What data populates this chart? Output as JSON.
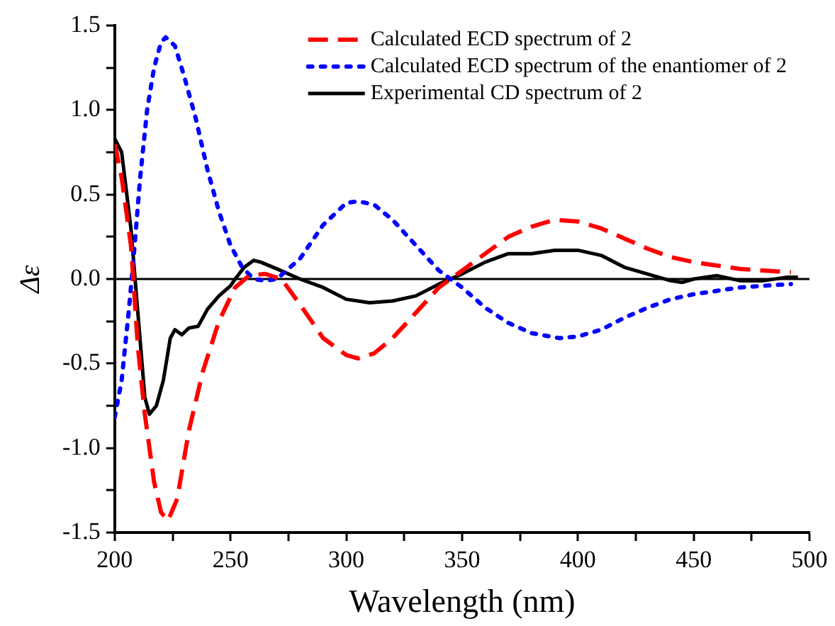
{
  "chart_data": {
    "type": "line",
    "xlabel": "Wavelength (nm)",
    "ylabel": "Δε",
    "legend": "top right",
    "grid": false,
    "marker": "none",
    "xlim": [
      200,
      500
    ],
    "ylim": [
      -1.5,
      1.5
    ],
    "xticks": [
      200,
      {
        "value": 225,
        "label": null
      },
      250,
      {
        "value": 275,
        "label": null
      },
      300,
      {
        "value": 325,
        "label": null
      },
      350,
      {
        "value": 375,
        "label": null
      },
      400,
      {
        "value": 425,
        "label": null
      },
      450,
      {
        "value": 475,
        "label": null
      },
      500
    ],
    "yticks": [
      {
        "value": -1.5,
        "label": "-1.5"
      },
      {
        "value": -1.25,
        "label": null
      },
      {
        "value": -1,
        "label": "-1.0"
      },
      {
        "value": -0.75,
        "label": null
      },
      {
        "value": -0.5,
        "label": "-0.5"
      },
      {
        "value": -0.25,
        "label": null
      },
      {
        "value": 0,
        "label": "0.0"
      },
      {
        "value": 0.25,
        "label": null
      },
      {
        "value": 0.5,
        "label": "0.5"
      },
      {
        "value": 0.75,
        "label": null
      },
      {
        "value": 1,
        "label": "1.0"
      },
      {
        "value": 1.25,
        "label": null
      },
      {
        "value": 1.5,
        "label": "1.5"
      }
    ],
    "ref_lines": [
      {
        "axis": "y",
        "value": 0,
        "color": "#000000"
      }
    ],
    "series": [
      {
        "name": "Calculated ECD spectrum of 2",
        "color": "#ff0000",
        "line_style": "dashed",
        "x": [
          200,
          203,
          207,
          210,
          213,
          217,
          220,
          223,
          227,
          232,
          238,
          245,
          252,
          258,
          265,
          272,
          280,
          290,
          300,
          305,
          312,
          320,
          330,
          340,
          345,
          350,
          360,
          370,
          380,
          390,
          400,
          410,
          420,
          430,
          440,
          450,
          460,
          470,
          480,
          492
        ],
        "values": [
          0.8,
          0.6,
          0.2,
          -0.4,
          -0.8,
          -1.2,
          -1.38,
          -1.43,
          -1.3,
          -0.9,
          -0.55,
          -0.25,
          -0.05,
          0.02,
          0.03,
          0.0,
          -0.15,
          -0.35,
          -0.45,
          -0.47,
          -0.44,
          -0.35,
          -0.2,
          -0.05,
          0.0,
          0.05,
          0.15,
          0.25,
          0.31,
          0.35,
          0.34,
          0.3,
          0.24,
          0.18,
          0.13,
          0.1,
          0.08,
          0.06,
          0.05,
          0.04
        ]
      },
      {
        "name": "Calculated ECD spectrum of the enantiomer of 2",
        "color": "#0000ff",
        "line_style": "dotted",
        "x": [
          200,
          203,
          206,
          208,
          211,
          214,
          217,
          220,
          222,
          226,
          230,
          235,
          240,
          245,
          250,
          255,
          260,
          265,
          270,
          280,
          290,
          300,
          305,
          312,
          320,
          330,
          340,
          345,
          350,
          360,
          370,
          380,
          392,
          400,
          410,
          420,
          430,
          440,
          450,
          460,
          470,
          480,
          492
        ],
        "values": [
          -0.82,
          -0.6,
          -0.2,
          0.1,
          0.6,
          1.0,
          1.25,
          1.4,
          1.43,
          1.38,
          1.2,
          0.95,
          0.65,
          0.4,
          0.2,
          0.07,
          0.0,
          -0.01,
          0.0,
          0.12,
          0.32,
          0.45,
          0.46,
          0.44,
          0.35,
          0.2,
          0.05,
          0.0,
          -0.05,
          -0.17,
          -0.26,
          -0.32,
          -0.35,
          -0.34,
          -0.3,
          -0.23,
          -0.17,
          -0.12,
          -0.09,
          -0.07,
          -0.05,
          -0.04,
          -0.03
        ]
      },
      {
        "name": "Experimental CD spectrum of 2",
        "color": "#000000",
        "line_style": "solid",
        "x": [
          200,
          203,
          207,
          210,
          213,
          215,
          218,
          221,
          224,
          226,
          229,
          232,
          236,
          240,
          245,
          250,
          252,
          256,
          260,
          263,
          270,
          280,
          290,
          300,
          310,
          320,
          330,
          340,
          345,
          350,
          360,
          370,
          380,
          390,
          400,
          410,
          420,
          430,
          440,
          445,
          450,
          460,
          470,
          480,
          490,
          495
        ],
        "values": [
          0.83,
          0.75,
          0.3,
          -0.2,
          -0.7,
          -0.8,
          -0.75,
          -0.6,
          -0.35,
          -0.3,
          -0.33,
          -0.29,
          -0.28,
          -0.18,
          -0.1,
          -0.04,
          0.0,
          0.07,
          0.11,
          0.1,
          0.06,
          0.0,
          -0.05,
          -0.12,
          -0.14,
          -0.13,
          -0.1,
          -0.03,
          0.0,
          0.03,
          0.1,
          0.15,
          0.15,
          0.17,
          0.17,
          0.14,
          0.07,
          0.03,
          -0.01,
          -0.02,
          0.0,
          0.02,
          -0.01,
          -0.01,
          0.01,
          0.01
        ]
      }
    ]
  }
}
